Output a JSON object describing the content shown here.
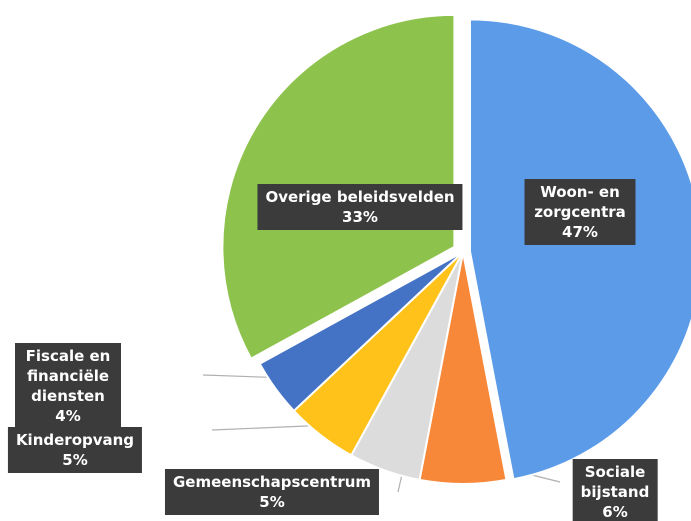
{
  "chart_data": {
    "type": "pie",
    "categories": [
      "Woon- en zorgcentra",
      "Sociale bijstand",
      "Gemeenschapscentrum",
      "Kinderopvang",
      "Fiscale en financiële diensten",
      "Overige beleidsvelden"
    ],
    "values": [
      47,
      6,
      5,
      5,
      4,
      33
    ],
    "value_labels": [
      "47%",
      "6%",
      "5%",
      "5%",
      "4%",
      "33%"
    ],
    "colors": [
      "#5b9be8",
      "#f7883a",
      "#dcdcdc",
      "#ffc21a",
      "#4472c4",
      "#8dc24c"
    ]
  }
}
